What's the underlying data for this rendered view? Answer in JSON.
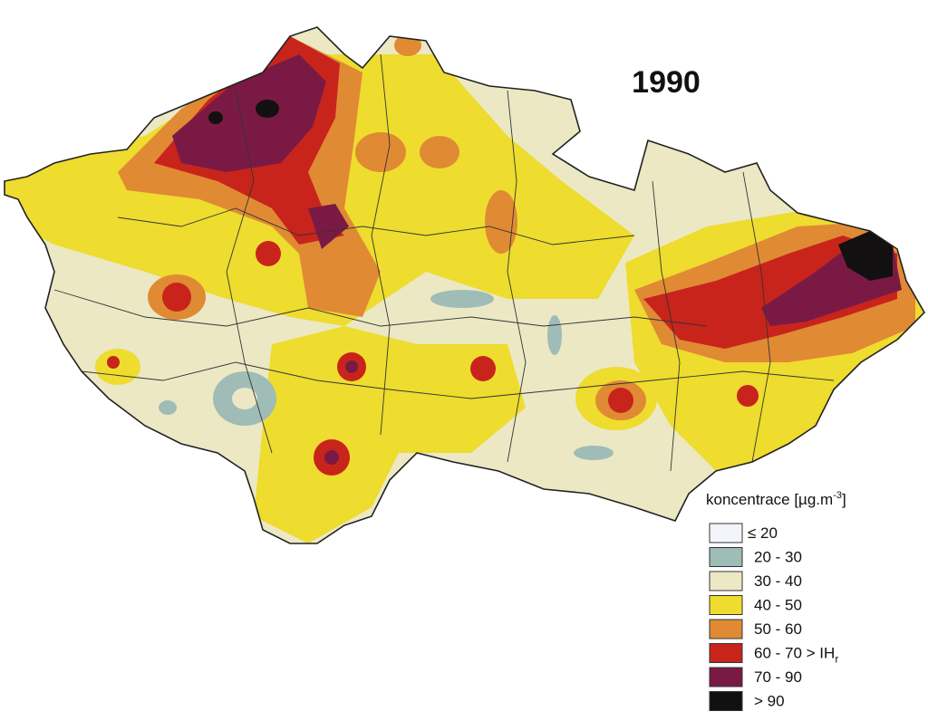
{
  "title": "1990",
  "legend": {
    "title": "koncentrace [µg.m",
    "title_sup": "-3",
    "title_end": "]",
    "items": [
      {
        "label": "≤ 20",
        "color": "#f4f5fa"
      },
      {
        "label": "20 - 30",
        "color": "#9fbcb6"
      },
      {
        "label": "30 - 40",
        "color": "#ece8c4"
      },
      {
        "label": "40 - 50",
        "color": "#eedc2e"
      },
      {
        "label": "50 - 60",
        "color": "#e08a34"
      },
      {
        "label": "60 - 70 > IH",
        "sub": "r",
        "color": "#c8241c"
      },
      {
        "label": "70 - 90",
        "color": "#7a1a44"
      },
      {
        "label": "> 90",
        "color": "#121010"
      }
    ]
  }
}
